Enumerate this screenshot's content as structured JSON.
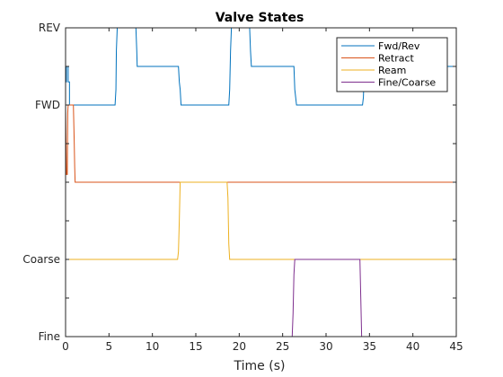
{
  "chart_data": {
    "type": "line",
    "title": "Valve States",
    "xlabel": "Time (s)",
    "ylabel": "",
    "xlim": [
      0,
      45
    ],
    "ylim": [
      0,
      4
    ],
    "x_ticks": [
      0,
      5,
      10,
      15,
      20,
      25,
      30,
      35,
      40,
      45
    ],
    "y_ticks": [
      {
        "value": 0,
        "label": "Fine"
      },
      {
        "value": 0.5,
        "label": ""
      },
      {
        "value": 1,
        "label": "Coarse"
      },
      {
        "value": 1.5,
        "label": ""
      },
      {
        "value": 2,
        "label": ""
      },
      {
        "value": 2.5,
        "label": ""
      },
      {
        "value": 3,
        "label": "FWD"
      },
      {
        "value": 3.5,
        "label": ""
      },
      {
        "value": 4,
        "label": "REV"
      }
    ],
    "grid": false,
    "legend_position": "top-right",
    "series": [
      {
        "name": "Fwd/Rev",
        "color": "#0072bd",
        "x": [
          0,
          0.1,
          0.1,
          0.3,
          0.3,
          0.45,
          0.45,
          5.7,
          5.8,
          5.85,
          5.95,
          6.0,
          8.1,
          8.2,
          8.25,
          13.0,
          13.1,
          13.2,
          13.3,
          13.4,
          18.8,
          18.9,
          19.0,
          19.1,
          21.2,
          21.3,
          21.4,
          26.3,
          26.4,
          26.5,
          26.6,
          34.2,
          34.3,
          34.4,
          34.5,
          37.6,
          37.7,
          45
        ],
        "y": [
          3.3,
          3.3,
          3.5,
          3.5,
          3.3,
          3.3,
          3.0,
          3.0,
          3.2,
          3.7,
          4.0,
          4.0,
          4.0,
          3.7,
          3.5,
          3.5,
          3.3,
          3.2,
          3.0,
          3.0,
          3.0,
          3.2,
          3.7,
          4.0,
          4.0,
          3.7,
          3.5,
          3.5,
          3.2,
          3.1,
          3.0,
          3.0,
          3.1,
          3.4,
          3.5,
          3.5,
          3.5,
          3.5
        ]
      },
      {
        "name": "Retract",
        "color": "#d95319",
        "x": [
          0,
          0.1,
          0.2,
          0.25,
          0.3,
          0.9,
          1.0,
          1.05,
          1.1,
          45
        ],
        "y": [
          3.0,
          2.1,
          2.1,
          2.9,
          3.0,
          3.0,
          2.5,
          2.2,
          2.0,
          2.0
        ],
        "dash_ends": true
      },
      {
        "name": "Ream",
        "color": "#edb120",
        "x": [
          0,
          12.9,
          13.0,
          13.1,
          13.2,
          18.6,
          18.7,
          18.8,
          18.9,
          45
        ],
        "y": [
          1.0,
          1.0,
          1.1,
          1.5,
          2.0,
          2.0,
          1.8,
          1.2,
          1.0,
          1.0
        ]
      },
      {
        "name": "Fine/Coarse",
        "color": "#7e2f8e",
        "x": [
          0,
          26.1,
          26.2,
          26.3,
          26.4,
          33.8,
          33.9,
          34.0,
          34.1,
          45
        ],
        "y": [
          0,
          0,
          0.3,
          0.8,
          1.0,
          1.0,
          1.0,
          0.5,
          0,
          0
        ]
      }
    ]
  }
}
